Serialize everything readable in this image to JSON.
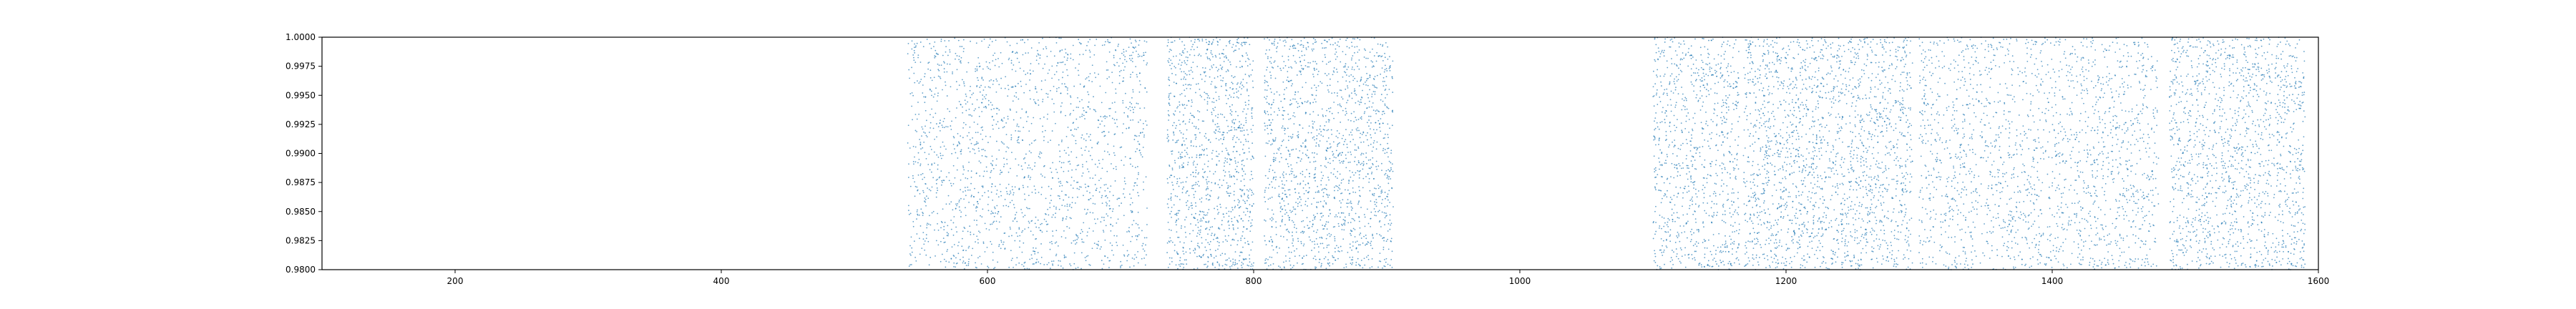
{
  "chart_data": {
    "type": "scatter",
    "title": "",
    "xlabel": "",
    "ylabel": "",
    "xlim": [
      100,
      1600
    ],
    "ylim": [
      0.98,
      1.0
    ],
    "grid": false,
    "legend": "none",
    "x_ticks": [
      {
        "value": 200,
        "label": "200"
      },
      {
        "value": 400,
        "label": "400"
      },
      {
        "value": 600,
        "label": "600"
      },
      {
        "value": 800,
        "label": "800"
      },
      {
        "value": 1000,
        "label": "1000"
      },
      {
        "value": 1200,
        "label": "1200"
      },
      {
        "value": 1400,
        "label": "1400"
      },
      {
        "value": 1600,
        "label": "1600"
      }
    ],
    "y_ticks": [
      {
        "value": 0.98,
        "label": "0.9800"
      },
      {
        "value": 0.9825,
        "label": "0.9825"
      },
      {
        "value": 0.985,
        "label": "0.9850"
      },
      {
        "value": 0.9875,
        "label": "0.9875"
      },
      {
        "value": 0.99,
        "label": "0.9900"
      },
      {
        "value": 0.9925,
        "label": "0.9925"
      },
      {
        "value": 0.995,
        "label": "0.9950"
      },
      {
        "value": 0.9975,
        "label": "0.9975"
      },
      {
        "value": 1.0,
        "label": "1.0000"
      }
    ],
    "series": [
      {
        "color": "#1f77b4",
        "marker": "point",
        "y_range": [
          0.98,
          1.0
        ],
        "x_segments": [
          {
            "x": [
              540,
              720
            ],
            "count": 1800
          },
          {
            "x": [
              735,
              800
            ],
            "count": 1100
          },
          {
            "x": [
              808,
              905
            ],
            "count": 1500
          },
          {
            "x": [
              1100,
              1165
            ],
            "count": 900
          },
          {
            "x": [
              1168,
              1295
            ],
            "count": 2000
          },
          {
            "x": [
              1300,
              1480
            ],
            "count": 1900
          },
          {
            "x": [
              1488,
              1590
            ],
            "count": 1500
          }
        ]
      }
    ]
  }
}
